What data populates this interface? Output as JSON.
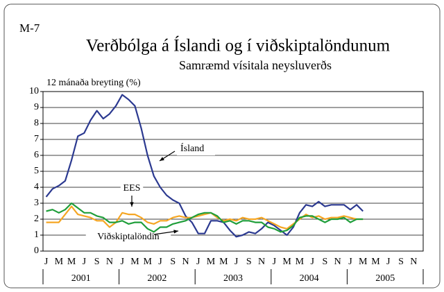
{
  "chart_data": {
    "type": "line",
    "figure_id": "M-7",
    "title": "Verðbólga á Íslandi og í viðskiptalöndunum",
    "subtitle": "Samræmd vísitala neysluverðs",
    "ylabel": "12 mánaða breyting (%)",
    "categories": [
      "J",
      null,
      "M",
      null,
      "M",
      null,
      "J",
      null,
      "S",
      null,
      "N",
      null,
      "J",
      null,
      "M",
      null,
      "M",
      null,
      "J",
      null,
      "S",
      null,
      "N",
      null,
      "J",
      null,
      "M",
      null,
      "M",
      null,
      "J",
      null,
      "S",
      null,
      "N",
      null,
      "J",
      null,
      "M",
      null,
      "M",
      null,
      "J",
      null,
      "S",
      null,
      "N",
      null,
      "J",
      null,
      "M",
      null,
      "M",
      null,
      "J",
      null,
      "S",
      null,
      "N",
      null
    ],
    "years": [
      "2001",
      "2002",
      "2003",
      "2004",
      "2005"
    ],
    "ylim": [
      0,
      10
    ],
    "yticks": [
      0,
      1,
      2,
      3,
      4,
      5,
      6,
      7,
      8,
      9,
      10
    ],
    "grid": true,
    "series": [
      {
        "name": "Ísland",
        "color": "#2b3990",
        "values": [
          3.4,
          3.9,
          4.1,
          4.4,
          5.7,
          7.2,
          7.4,
          8.2,
          8.8,
          8.3,
          8.6,
          9.1,
          9.8,
          9.5,
          9.1,
          7.7,
          6.0,
          4.7,
          4.0,
          3.5,
          3.2,
          3.0,
          2.2,
          1.8,
          1.1,
          1.1,
          1.9,
          1.9,
          1.8,
          1.3,
          0.9,
          1.0,
          1.2,
          1.1,
          1.4,
          1.8,
          1.6,
          1.3,
          1.0,
          1.5,
          2.4,
          2.9,
          2.8,
          3.1,
          2.8,
          2.9,
          2.9,
          2.9,
          2.6,
          2.9,
          2.5,
          null,
          null,
          null,
          null,
          null,
          null,
          null,
          null,
          null
        ]
      },
      {
        "name": "EES",
        "color": "#f5a623",
        "values": [
          1.8,
          1.8,
          1.8,
          2.3,
          2.8,
          2.3,
          2.2,
          2.1,
          1.9,
          1.9,
          1.5,
          1.8,
          2.4,
          2.3,
          2.3,
          2.1,
          1.8,
          1.7,
          1.9,
          1.9,
          2.1,
          2.2,
          2.1,
          2.1,
          2.2,
          2.3,
          2.4,
          2.1,
          1.9,
          2.0,
          1.9,
          2.1,
          2.0,
          2.0,
          2.1,
          1.9,
          1.7,
          1.5,
          1.4,
          1.7,
          2.0,
          2.3,
          2.1,
          2.2,
          2.0,
          2.1,
          2.1,
          2.2,
          2.1,
          2.0,
          2.0,
          null,
          null,
          null,
          null,
          null,
          null,
          null,
          null,
          null
        ]
      },
      {
        "name": "Viðskiptalöndin",
        "color": "#1f9e3a",
        "values": [
          2.5,
          2.6,
          2.4,
          2.6,
          3.0,
          2.7,
          2.4,
          2.4,
          2.2,
          2.1,
          1.8,
          1.8,
          1.9,
          1.7,
          1.8,
          1.8,
          1.4,
          1.2,
          1.5,
          1.5,
          1.7,
          1.8,
          1.9,
          2.1,
          2.3,
          2.4,
          2.4,
          2.2,
          1.8,
          1.9,
          1.7,
          1.9,
          1.9,
          1.8,
          1.8,
          1.5,
          1.4,
          1.2,
          1.3,
          1.6,
          2.1,
          2.2,
          2.2,
          2.0,
          1.8,
          2.0,
          2.0,
          2.1,
          1.8,
          2.0,
          2.0,
          null,
          null,
          null,
          null,
          null,
          null,
          null,
          null,
          null
        ]
      }
    ]
  }
}
